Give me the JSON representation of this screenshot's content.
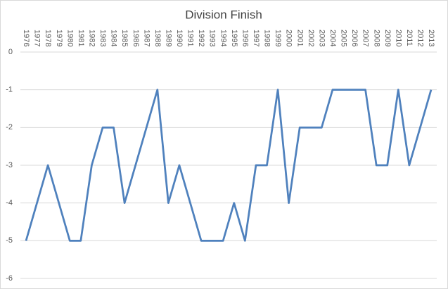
{
  "chart_data": {
    "type": "line",
    "title": "Division Finish",
    "categories": [
      "1976",
      "1977",
      "1978",
      "1979",
      "1980",
      "1981",
      "1982",
      "1983",
      "1984",
      "1985",
      "1986",
      "1987",
      "1988",
      "1989",
      "1990",
      "1991",
      "1992",
      "1993",
      "1994",
      "1995",
      "1996",
      "1997",
      "1998",
      "1999",
      "2000",
      "2001",
      "2002",
      "2003",
      "2004",
      "2005",
      "2006",
      "2007",
      "2008",
      "2009",
      "2010",
      "2011",
      "2012",
      "2013"
    ],
    "series": [
      {
        "color": "#4f81bd",
        "values": [
          -5,
          -4,
          -3,
          -4,
          -5,
          -5,
          -3,
          -2,
          -2,
          -4,
          -3,
          -2,
          -1,
          -4,
          -3,
          -4,
          -5,
          -5,
          -5,
          -4,
          -5,
          -3,
          -3,
          -1,
          -4,
          -2,
          -2,
          -2,
          -1,
          -1,
          -1,
          -1,
          -3,
          -3,
          -1,
          -3,
          -2,
          -1
        ]
      }
    ],
    "ylim": [
      -6,
      0
    ],
    "yticks": [
      0,
      -1,
      -2,
      -3,
      -4,
      -5,
      -6
    ],
    "grid": true
  }
}
